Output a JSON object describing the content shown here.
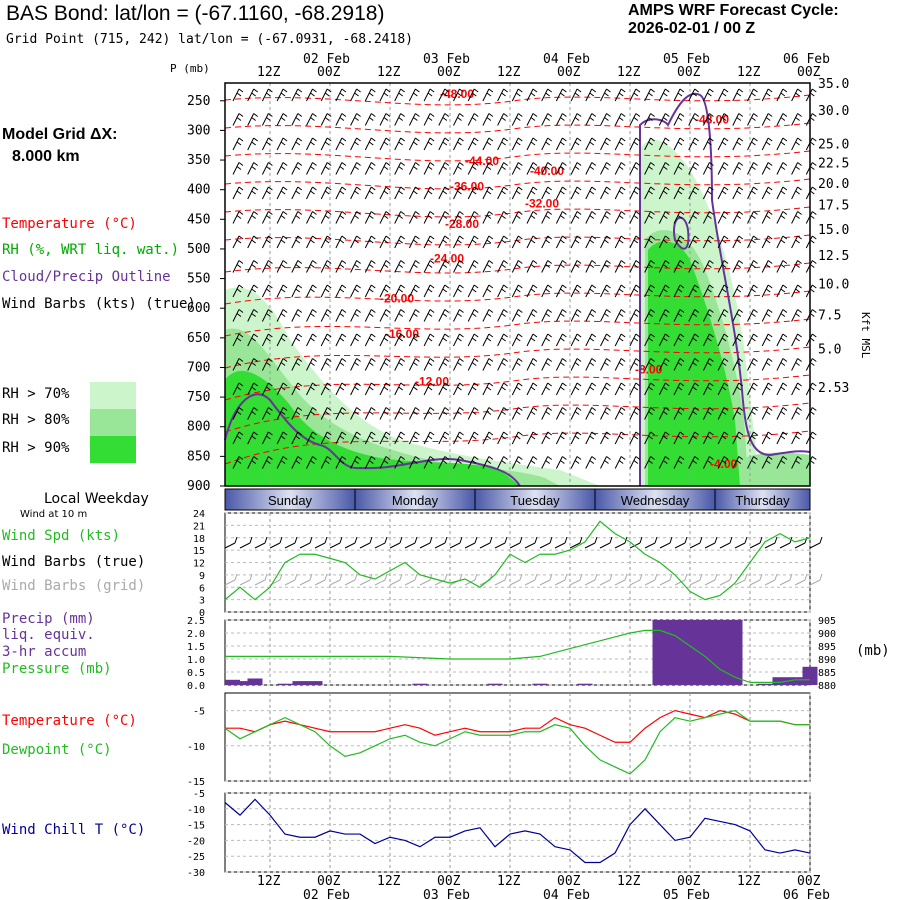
{
  "header": {
    "title": "BAS Bond:  lat/lon = (-67.1160, -68.2918)",
    "subtitle": "Grid Point (715, 242) lat/lon = (-67.0931, -68.2418)",
    "cycle_label": "AMPS WRF Forecast Cycle:",
    "cycle_value": "2026-02-01 / 00  Z",
    "grid_label": "Model Grid ΔX:",
    "grid_value": "8.000 km"
  },
  "legend": {
    "temperature": "Temperature (°C)",
    "rh": "RH (%, WRT liq. wat.)",
    "cloud": "Cloud/Precip Outline",
    "wind": "Wind Barbs (kts) (true)",
    "rh_levels": [
      "RH > 70%",
      "RH > 80%",
      "RH > 90%"
    ],
    "rh_colors": [
      "#ccf5cc",
      "#99e699",
      "#33dd33"
    ]
  },
  "colors": {
    "temperature": "#ff0000",
    "rh": "#00aa00",
    "cloud": "#663399",
    "wind_spd": "#22bb22",
    "pressure": "#22bb22",
    "precip": "#663399",
    "dewpoint": "#22bb22",
    "windchill": "#000099",
    "grid_barbs": "#aaaaaa"
  },
  "time_axis": {
    "hour_labels": [
      "12Z",
      "00Z",
      "12Z",
      "00Z",
      "12Z",
      "00Z",
      "12Z",
      "00Z",
      "12Z",
      "00Z"
    ],
    "hours": [
      12,
      24,
      36,
      48,
      60,
      72,
      84,
      96,
      108,
      120
    ],
    "date_labels": [
      "02 Feb",
      "03 Feb",
      "04 Feb",
      "05 Feb",
      "06 Feb"
    ],
    "date_hours": [
      24,
      48,
      72,
      96,
      120
    ],
    "range": [
      3,
      120
    ]
  },
  "weekdays": {
    "title": "Local Weekday",
    "subtitle": "Wind at 10 m",
    "days": [
      {
        "label": "Sunday",
        "start": 3,
        "end": 29
      },
      {
        "label": "Monday",
        "start": 29,
        "end": 53
      },
      {
        "label": "Tuesday",
        "start": 53,
        "end": 77
      },
      {
        "label": "Wednesday",
        "start": 77,
        "end": 101
      },
      {
        "label": "Thursday",
        "start": 101,
        "end": 120
      }
    ]
  },
  "chart_data": [
    {
      "type": "heatmap",
      "name": "cross-section",
      "ylabel": "P (mb)",
      "ylabel_right": "Kft MSL",
      "yticks": [
        250,
        300,
        350,
        400,
        450,
        500,
        550,
        600,
        650,
        700,
        750,
        800,
        850,
        900
      ],
      "ylim": [
        900,
        220
      ],
      "height_ticks": [
        {
          "label": "35.0",
          "p": 222
        },
        {
          "label": "30.0",
          "p": 267
        },
        {
          "label": "25.0",
          "p": 324
        },
        {
          "label": "22.5",
          "p": 356
        },
        {
          "label": "20.0",
          "p": 390
        },
        {
          "label": "17.5",
          "p": 427
        },
        {
          "label": "15.0",
          "p": 468
        },
        {
          "label": "12.5",
          "p": 512
        },
        {
          "label": "10.0",
          "p": 560
        },
        {
          "label": "7.5",
          "p": 612
        },
        {
          "label": "5.0",
          "p": 670
        },
        {
          "label": "2.53",
          "p": 735
        }
      ],
      "temperature_labels": [
        {
          "text": "-48.00",
          "x": 46,
          "p": 245
        },
        {
          "text": "-48.00",
          "x": 97,
          "p": 288
        },
        {
          "text": "-44.00",
          "x": 51,
          "p": 358
        },
        {
          "text": "-40.00",
          "x": 64,
          "p": 375
        },
        {
          "text": "-36.00",
          "x": 48,
          "p": 401
        },
        {
          "text": "-32.00",
          "x": 63,
          "p": 430
        },
        {
          "text": "-28.00",
          "x": 47,
          "p": 465
        },
        {
          "text": "-24.00",
          "x": 44,
          "p": 523
        },
        {
          "text": "-20.00",
          "x": 34,
          "p": 590
        },
        {
          "text": "-16.00",
          "x": 35,
          "p": 650
        },
        {
          "text": "-12.00",
          "x": 41,
          "p": 730
        },
        {
          "text": "-8.00",
          "x": 85,
          "p": 710
        },
        {
          "text": "-4.00",
          "x": 100,
          "p": 870
        }
      ]
    },
    {
      "type": "line",
      "name": "wind-speed",
      "title": "Wind Spd (kts)",
      "barbs_true_label": "Wind Barbs (true)",
      "barbs_grid_label": "Wind Barbs (grid)",
      "yticks": [
        0,
        3,
        6,
        9,
        12,
        15,
        18,
        21,
        24
      ],
      "ylim": [
        0,
        24
      ],
      "x": [
        3,
        6,
        9,
        12,
        15,
        18,
        21,
        24,
        27,
        30,
        33,
        36,
        39,
        42,
        45,
        48,
        51,
        54,
        57,
        60,
        63,
        66,
        69,
        72,
        75,
        78,
        81,
        84,
        87,
        90,
        93,
        96,
        99,
        102,
        105,
        108,
        111,
        114,
        117,
        120
      ],
      "values": [
        3,
        6,
        3,
        6,
        12,
        14,
        14,
        13,
        12,
        9,
        8,
        10,
        12,
        9,
        8,
        7,
        8,
        6,
        9,
        14,
        12,
        14,
        14,
        15,
        17,
        22,
        19,
        17,
        14,
        12,
        9,
        5,
        3,
        4,
        7,
        12,
        17,
        19,
        17,
        18
      ]
    },
    {
      "type": "bar",
      "name": "precip-pressure",
      "title": "Precip (mm)",
      "title2": "liq. equiv.",
      "title3": "3-hr accum",
      "title4": "Pressure (mb)",
      "right_unit": "(mb)",
      "yticks": [
        "0.0",
        "0.5",
        "1.0",
        "1.5",
        "2.0",
        "2.5"
      ],
      "ylim": [
        0,
        2.5
      ],
      "right_yticks": [
        "880",
        "885",
        "890",
        "895",
        "900",
        "905"
      ],
      "right_ylim": [
        880,
        905
      ],
      "precip_x": [
        3,
        6,
        9,
        15,
        18,
        21,
        42,
        57,
        66,
        75,
        90,
        93,
        96,
        99,
        102,
        105,
        111,
        114,
        117,
        120
      ],
      "precip_values": [
        0.2,
        0.15,
        0.25,
        0.05,
        0.15,
        0.15,
        0.05,
        0.05,
        0.05,
        0.05,
        2.5,
        2.5,
        2.5,
        2.5,
        2.5,
        2.5,
        0.05,
        0.3,
        0.3,
        0.7
      ],
      "pressure_x": [
        3,
        12,
        24,
        36,
        48,
        60,
        66,
        72,
        78,
        84,
        87,
        90,
        93,
        96,
        99,
        102,
        105,
        108,
        111,
        114,
        117,
        120
      ],
      "pressure_values": [
        891,
        891,
        891,
        891,
        890,
        890,
        891,
        894,
        897,
        900,
        901,
        901,
        899,
        895,
        891,
        886,
        883,
        881,
        881,
        881,
        882,
        882
      ]
    },
    {
      "type": "line",
      "name": "temperature-dewpoint",
      "series": [
        {
          "name": "Temperature (°C)",
          "values": [
            -7.5,
            -7.5,
            -8,
            -7,
            -6.5,
            -7,
            -7.5,
            -8,
            -8,
            -8,
            -8,
            -7.5,
            -7,
            -7.5,
            -8.5,
            -8,
            -7.5,
            -8,
            -8,
            -8,
            -7.5,
            -7.5,
            -6,
            -7,
            -7.5,
            -8.5,
            -9.5,
            -9.5,
            -7.5,
            -6,
            -5,
            -5.5,
            -6,
            -5,
            -5.5,
            -6.5,
            -6.5,
            -6.5,
            -7,
            -7
          ]
        },
        {
          "name": "Dewpoint (°C)",
          "values": [
            -7.5,
            -9,
            -8,
            -7,
            -6,
            -7,
            -8,
            -10,
            -11.5,
            -11,
            -10,
            -9,
            -8.5,
            -9.5,
            -10,
            -9,
            -8,
            -8.5,
            -8.5,
            -8.5,
            -8,
            -8,
            -7,
            -7.5,
            -10,
            -12,
            -13,
            -14,
            -12,
            -8,
            -6,
            -6.5,
            -6,
            -5.5,
            -5,
            -6.5,
            -6.5,
            -6.5,
            -7,
            -7
          ]
        }
      ],
      "x": [
        3,
        6,
        9,
        12,
        15,
        18,
        21,
        24,
        27,
        30,
        33,
        36,
        39,
        42,
        45,
        48,
        51,
        54,
        57,
        60,
        63,
        66,
        69,
        72,
        75,
        78,
        81,
        84,
        87,
        90,
        93,
        96,
        99,
        102,
        105,
        108,
        111,
        114,
        117,
        120
      ],
      "yticks": [
        -15,
        -10,
        -5
      ],
      "ylim": [
        -15,
        -2.5
      ]
    },
    {
      "type": "line",
      "name": "wind-chill",
      "series": [
        {
          "name": "Wind Chill T (°C)",
          "values": [
            -8,
            -12,
            -7,
            -12,
            -18,
            -19,
            -19,
            -17,
            -18,
            -18,
            -21,
            -19,
            -20,
            -22,
            -19,
            -19,
            -17,
            -16,
            -22,
            -18,
            -17,
            -18,
            -22,
            -23,
            -27,
            -27,
            -24,
            -15,
            -10,
            -15,
            -20,
            -19,
            -13,
            -14,
            -15,
            -17,
            -23,
            -24,
            -23,
            -24
          ]
        }
      ],
      "x": [
        3,
        6,
        9,
        12,
        15,
        18,
        21,
        24,
        27,
        30,
        33,
        36,
        39,
        42,
        45,
        48,
        51,
        54,
        57,
        60,
        63,
        66,
        69,
        72,
        75,
        78,
        81,
        84,
        87,
        90,
        93,
        96,
        99,
        102,
        105,
        108,
        111,
        114,
        117,
        120
      ],
      "yticks": [
        -30,
        -25,
        -20,
        -15,
        -10,
        -5
      ],
      "ylim": [
        -30,
        -5
      ]
    }
  ]
}
